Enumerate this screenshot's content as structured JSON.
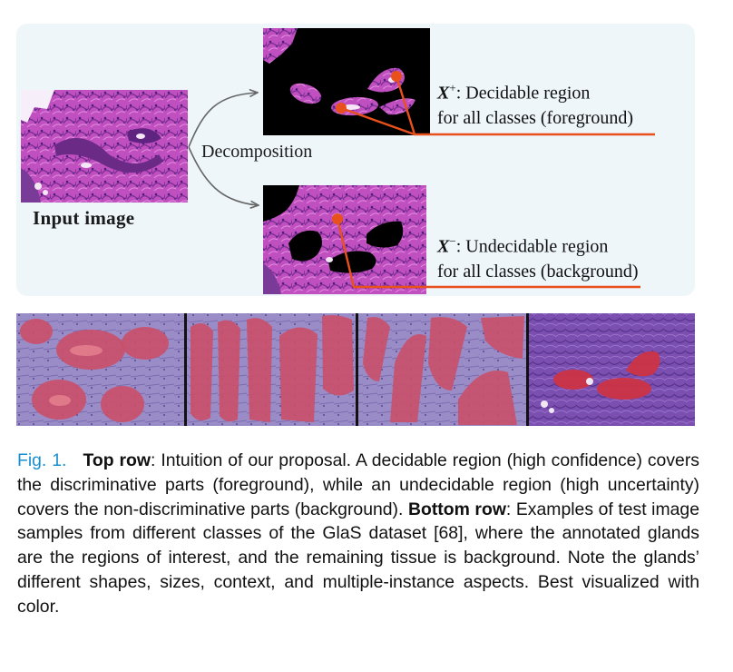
{
  "figure": {
    "input_label": "Input image",
    "arrow_label": "Decomposition",
    "foreground": {
      "symbol": "X",
      "sign": "+",
      "line1_suffix": ": Decidable region",
      "line2": "for all classes (foreground)"
    },
    "background": {
      "symbol": "X",
      "sign": "−",
      "line1_suffix": ": Undecidable region",
      "line2": "for all classes (background)"
    },
    "colors": {
      "panel": "#eef6fa",
      "pointer": "#e8501c",
      "tissue": "#c04fc0",
      "gland_overlay": "#c9506a",
      "caption_link": "#1a8fd0"
    },
    "bottom_row_images": [
      "gland-sample-1",
      "gland-sample-2",
      "gland-sample-3",
      "gland-sample-4"
    ]
  },
  "caption": {
    "fig_number": "Fig. 1.",
    "top_row_label": "Top row",
    "top_row_text": ": Intuition of our proposal. A decidable region (high confidence) covers the discriminative parts (foreground), while an undecidable region (high uncertainty) covers the non-discriminative parts (background). ",
    "bottom_row_label": "Bottom row",
    "bottom_row_text": ": Examples of test image samples from different classes of the GlaS dataset [68], where the annotated glands are the regions of interest, and the remaining tissue is background. Note the glands’ different shapes, sizes, context, and multiple-instance aspects. Best visualized with color."
  }
}
